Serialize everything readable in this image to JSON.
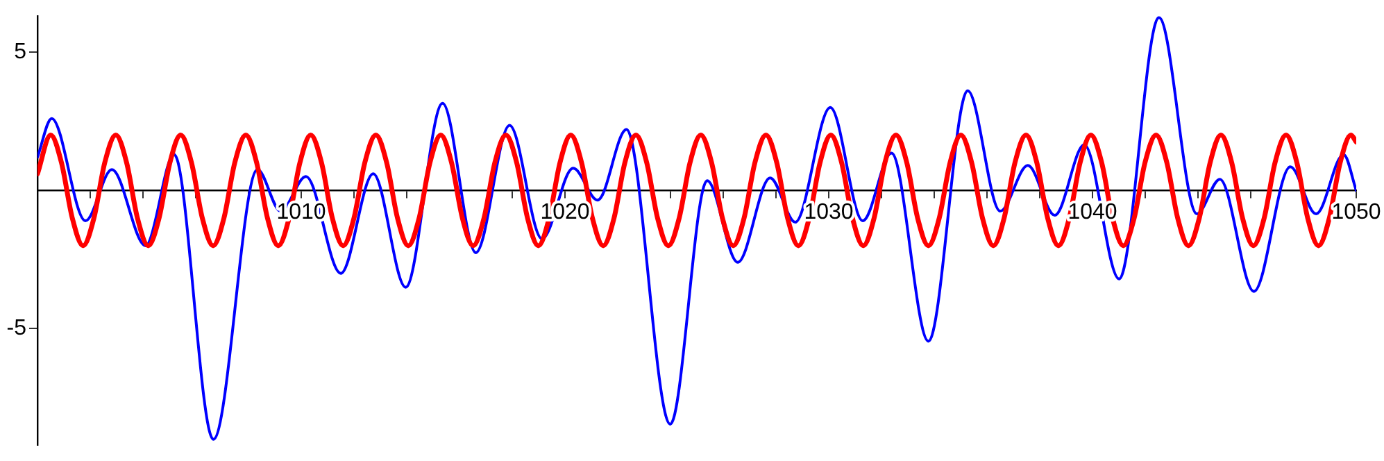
{
  "chart_data": {
    "type": "line",
    "xlim": [
      1000,
      1050
    ],
    "ylim": [
      -9.2,
      6.3
    ],
    "xticks": [
      {
        "value": 1002,
        "label": null
      },
      {
        "value": 1004,
        "label": null
      },
      {
        "value": 1006,
        "label": null
      },
      {
        "value": 1008,
        "label": null
      },
      1010,
      {
        "value": 1012,
        "label": null
      },
      {
        "value": 1014,
        "label": null
      },
      {
        "value": 1016,
        "label": null
      },
      {
        "value": 1018,
        "label": null
      },
      1020,
      {
        "value": 1022,
        "label": null
      },
      {
        "value": 1024,
        "label": null
      },
      {
        "value": 1026,
        "label": null
      },
      {
        "value": 1028,
        "label": null
      },
      1030,
      {
        "value": 1032,
        "label": null
      },
      {
        "value": 1034,
        "label": null
      },
      {
        "value": 1036,
        "label": null
      },
      {
        "value": 1038,
        "label": null
      },
      1040,
      {
        "value": 1042,
        "label": null
      },
      {
        "value": 1044,
        "label": null
      },
      {
        "value": 1046,
        "label": null
      },
      {
        "value": 1048,
        "label": null
      },
      1050
    ],
    "yticks": [
      -5,
      5
    ],
    "grid": false,
    "legend": false,
    "marker": "none",
    "line_style": "solid",
    "series": [
      {
        "color": "#0000ff",
        "x": [
          1000,
          1000.54,
          1001.82,
          1002.82,
          1004.1,
          1005.18,
          1006.67,
          1008.34,
          1009.22,
          1010.18,
          1011.5,
          1012.73,
          1013.96,
          1015.36,
          1016.62,
          1017.9,
          1019.13,
          1020.31,
          1021.24,
          1022.33,
          1023.99,
          1025.39,
          1026.55,
          1027.78,
          1028.73,
          1030.06,
          1031.29,
          1032.38,
          1033.78,
          1035.27,
          1036.5,
          1037.55,
          1038.57,
          1039.69,
          1041.01,
          1042.52,
          1043.96,
          1044.83,
          1046.12,
          1047.5,
          1048.48,
          1049.52,
          1050
        ],
        "values": [
          1.2,
          2.6,
          -1.1,
          0.75,
          -2.0,
          1.3,
          -9.0,
          0.75,
          -0.75,
          0.5,
          -3.0,
          0.6,
          -3.5,
          3.15,
          -2.25,
          2.35,
          -1.75,
          0.8,
          -0.35,
          2.2,
          -8.45,
          0.35,
          -2.6,
          0.45,
          -1.15,
          3.0,
          -1.1,
          1.35,
          -5.45,
          3.6,
          -0.75,
          0.9,
          -0.9,
          1.65,
          -3.2,
          6.25,
          -0.85,
          0.4,
          -3.65,
          0.85,
          -0.85,
          1.3,
          0
        ]
      },
      {
        "color": "#ff0000",
        "x": [
          1000,
          1000.5,
          1000.91,
          1001.32,
          1001.73,
          1002.14,
          1002.55,
          1002.97,
          1003.38,
          1003.79,
          1004.2,
          1004.61,
          1005.02,
          1005.43,
          1005.84,
          1006.25,
          1006.66,
          1007.07,
          1007.48,
          1007.9,
          1008.31,
          1008.72,
          1009.13,
          1009.54,
          1009.95,
          1010.36,
          1010.77,
          1011.18,
          1011.59,
          1012.0,
          1012.41,
          1012.83,
          1013.24,
          1013.65,
          1014.06,
          1014.47,
          1014.88,
          1015.29,
          1015.7,
          1016.11,
          1016.52,
          1016.93,
          1017.34,
          1017.76,
          1018.17,
          1018.58,
          1018.99,
          1019.4,
          1019.81,
          1020.22,
          1020.63,
          1021.04,
          1021.45,
          1021.86,
          1022.27,
          1022.69,
          1023.1,
          1023.51,
          1023.92,
          1024.33,
          1024.74,
          1025.15,
          1025.56,
          1025.97,
          1026.38,
          1026.79,
          1027.2,
          1027.62,
          1028.03,
          1028.44,
          1028.85,
          1029.26,
          1029.67,
          1030.08,
          1030.49,
          1030.9,
          1031.31,
          1031.72,
          1032.13,
          1032.55,
          1032.96,
          1033.37,
          1033.78,
          1034.19,
          1034.6,
          1035.01,
          1035.42,
          1035.83,
          1036.24,
          1036.65,
          1037.06,
          1037.48,
          1037.89,
          1038.3,
          1038.71,
          1039.12,
          1039.53,
          1039.94,
          1040.35,
          1040.76,
          1041.17,
          1041.58,
          1041.99,
          1042.41,
          1042.82,
          1043.23,
          1043.64,
          1044.05,
          1044.46,
          1044.87,
          1045.28,
          1045.69,
          1046.1,
          1046.51,
          1046.92,
          1047.34,
          1047.75,
          1048.16,
          1048.57,
          1048.98,
          1049.39,
          1049.8,
          1050
        ],
        "values": [
          0.6,
          2,
          1,
          -1,
          -2,
          -1,
          1,
          2,
          1,
          -1,
          -2,
          -1,
          1,
          2,
          1,
          -1,
          -2,
          -1,
          1,
          2,
          1,
          -1,
          -2,
          -1,
          1,
          2,
          1,
          -1,
          -2,
          -1,
          1,
          2,
          1,
          -1,
          -2,
          -1,
          1,
          2,
          1,
          -1,
          -2,
          -1,
          1,
          2,
          1,
          -1,
          -2,
          -1,
          1,
          2,
          1,
          -1,
          -2,
          -1,
          1,
          2,
          1,
          -1,
          -2,
          -1,
          1,
          2,
          1,
          -1,
          -2,
          -1,
          1,
          2,
          1,
          -1,
          -2,
          -1,
          1,
          2,
          1,
          -1,
          -2,
          -1,
          1,
          2,
          1,
          -1,
          -2,
          -1,
          1,
          2,
          1,
          -1,
          -2,
          -1,
          1,
          2,
          1,
          -1,
          -2,
          -1,
          1,
          2,
          1,
          -1,
          -2,
          -1,
          1,
          2,
          1,
          -1,
          -2,
          -1,
          1,
          2,
          1,
          -1,
          -2,
          -1,
          1,
          2,
          1,
          -1,
          -2,
          -1,
          1,
          2,
          1.75
        ]
      }
    ]
  }
}
